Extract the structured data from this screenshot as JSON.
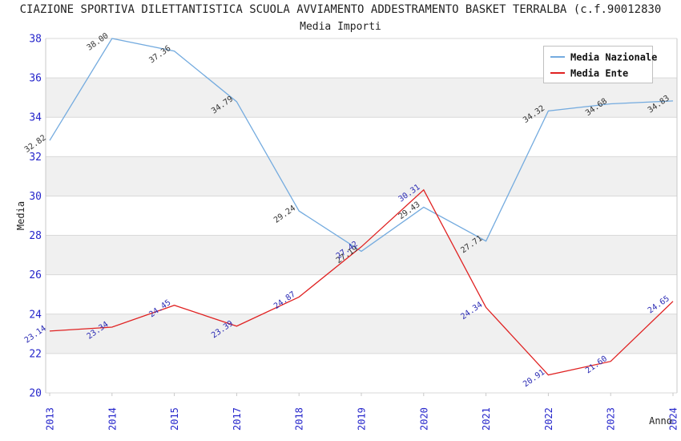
{
  "chart_data": {
    "type": "line",
    "title": "CIAZIONE SPORTIVA DILETTANTISTICA SCUOLA AVVIAMENTO ADDESTRAMENTO BASKET TERRALBA (c.f.90012830",
    "subtitle": "Media Importi",
    "xlabel": "Anno",
    "ylabel": "Media",
    "categories": [
      "2013",
      "2014",
      "2015",
      "2017",
      "2018",
      "2019",
      "2020",
      "2021",
      "2022",
      "2023",
      "2024"
    ],
    "ylim": [
      20,
      38
    ],
    "ytick_step": 2,
    "grid": true,
    "alternating_bands": true,
    "legend_position": "top-right",
    "series": [
      {
        "name": "Media Nazionale",
        "color": "#74abdf",
        "label_color": "#333333",
        "values": [
          32.82,
          38.0,
          37.36,
          34.79,
          29.24,
          27.19,
          29.43,
          27.71,
          34.32,
          34.68,
          34.83
        ]
      },
      {
        "name": "Media Ente",
        "color": "#e02222",
        "label_color": "#2a2ab4",
        "values": [
          23.14,
          23.34,
          24.45,
          23.39,
          24.87,
          27.42,
          30.31,
          24.34,
          20.91,
          21.6,
          24.65
        ]
      }
    ],
    "colors": {
      "axis_label": "#2525cb",
      "band": "#f0f0f0",
      "gridline": "#d9d9d9",
      "border": "#c9c9c9",
      "text": "#222222",
      "legend_border": "#c0c0c0",
      "legend_text": "#111111"
    }
  }
}
